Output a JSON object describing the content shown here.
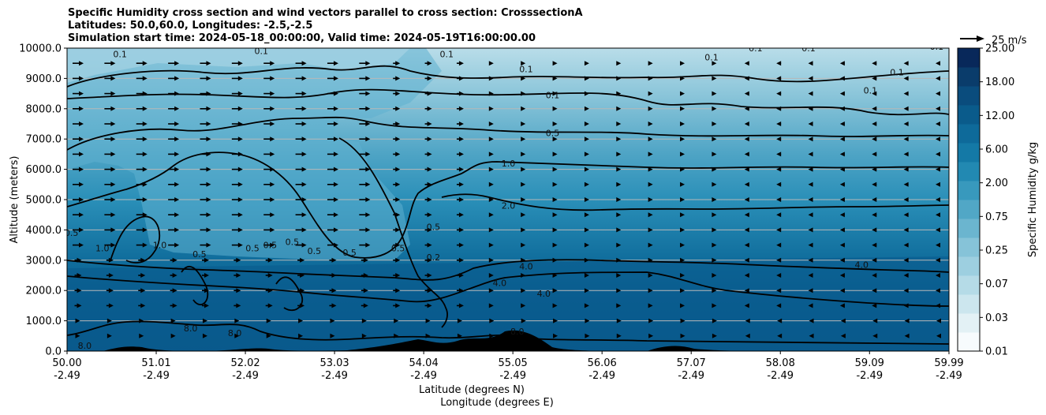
{
  "chart_data": {
    "type": "heatmap",
    "title_lines": [
      "Specific Humidity cross section and wind vectors parallel to cross section: CrosssectionA",
      "Latitudes: 50.0,60.0, Longitudes: -2.5,-2.5",
      "Simulation start time: 2024-05-18_00:00:00, Valid time: 2024-05-19T16:00:00.00"
    ],
    "ylabel": "Altitude (meters)",
    "xlabel_lines": [
      "Latitude (degrees N)",
      "Longitude (degrees E)"
    ],
    "ylim": [
      0,
      10000
    ],
    "xlim": [
      50.0,
      59.99
    ],
    "y_ticks": [
      "0.0",
      "1000.0",
      "2000.0",
      "3000.0",
      "4000.0",
      "5000.0",
      "6000.0",
      "7000.0",
      "8000.0",
      "9000.0",
      "10000.0"
    ],
    "x_ticks": [
      {
        "lat": "50.00",
        "lon": "-2.49"
      },
      {
        "lat": "51.01",
        "lon": "-2.49"
      },
      {
        "lat": "52.02",
        "lon": "-2.49"
      },
      {
        "lat": "53.03",
        "lon": "-2.49"
      },
      {
        "lat": "54.04",
        "lon": "-2.49"
      },
      {
        "lat": "55.05",
        "lon": "-2.49"
      },
      {
        "lat": "56.06",
        "lon": "-2.49"
      },
      {
        "lat": "57.07",
        "lon": "-2.49"
      },
      {
        "lat": "58.08",
        "lon": "-2.49"
      },
      {
        "lat": "59.09",
        "lon": "-2.49"
      },
      {
        "lat": "59.99",
        "lon": "-2.49"
      }
    ],
    "grid": "horizontal",
    "colorbar": {
      "label": "Specific Humidity g/kg",
      "levels": [
        "0.01",
        "0.03",
        "0.07",
        "0.25",
        "0.75",
        "2.00",
        "6.00",
        "12.00",
        "18.00",
        "25.00"
      ],
      "label_levels": [
        "0.01",
        "0.03",
        "0.07",
        "0.25",
        "0.75",
        "2.00",
        "6.00",
        "12.00",
        "18.00",
        "25.00"
      ],
      "colors": [
        "#f7fbfd",
        "#e3f1f5",
        "#cce6ee",
        "#b5dbe7",
        "#9dcfe0",
        "#86c3d8",
        "#6bb5cf",
        "#51a7c6",
        "#3899bd",
        "#2289b2",
        "#1479a6",
        "#0e6a9a",
        "#0a5b8b",
        "#0a4c7d",
        "#0a3c6b",
        "#08285a"
      ]
    },
    "quiver_key": "25 m/s",
    "contour_labels": [
      {
        "text": "0.1",
        "lat": 50.6,
        "alt": 9700
      },
      {
        "text": "0.1",
        "lat": 52.2,
        "alt": 9800
      },
      {
        "text": "0.1",
        "lat": 54.3,
        "alt": 9700
      },
      {
        "text": "0.1",
        "lat": 55.2,
        "alt": 9200
      },
      {
        "text": "0.1",
        "lat": 55.5,
        "alt": 8350
      },
      {
        "text": "0.1",
        "lat": 57.3,
        "alt": 9600
      },
      {
        "text": "0.1",
        "lat": 57.8,
        "alt": 9900
      },
      {
        "text": "0.1",
        "lat": 58.4,
        "alt": 9900
      },
      {
        "text": "0.1",
        "lat": 59.4,
        "alt": 9100
      },
      {
        "text": "0.1",
        "lat": 59.1,
        "alt": 8500
      },
      {
        "text": "0.1",
        "lat": 59.85,
        "alt": 9950
      },
      {
        "text": "0.5",
        "lat": 55.5,
        "alt": 7100
      },
      {
        "text": "1.0",
        "lat": 55.0,
        "alt": 6100
      },
      {
        "text": "2.0",
        "lat": 55.0,
        "alt": 4700
      },
      {
        "text": "4.0",
        "lat": 54.9,
        "alt": 2150
      },
      {
        "text": "4.0",
        "lat": 55.2,
        "alt": 2700
      },
      {
        "text": "4.0",
        "lat": 55.4,
        "alt": 1800
      },
      {
        "text": "4.0",
        "lat": 59.0,
        "alt": 2750
      },
      {
        "text": "0.5",
        "lat": 50.05,
        "alt": 3800
      },
      {
        "text": "1.0",
        "lat": 50.4,
        "alt": 3300
      },
      {
        "text": "1.0",
        "lat": 51.05,
        "alt": 3400
      },
      {
        "text": "0.5",
        "lat": 51.5,
        "alt": 3100
      },
      {
        "text": "0.5",
        "lat": 52.1,
        "alt": 3300
      },
      {
        "text": "0.5",
        "lat": 52.3,
        "alt": 3400
      },
      {
        "text": "0.5",
        "lat": 52.55,
        "alt": 3500
      },
      {
        "text": "0.5",
        "lat": 52.8,
        "alt": 3200
      },
      {
        "text": "0.5",
        "lat": 53.2,
        "alt": 3150
      },
      {
        "text": "0.5",
        "lat": 53.75,
        "alt": 3300
      },
      {
        "text": "0.2",
        "lat": 54.15,
        "alt": 3000
      },
      {
        "text": "0.5",
        "lat": 54.15,
        "alt": 4000
      },
      {
        "text": "8.0",
        "lat": 50.2,
        "alt": 80
      },
      {
        "text": "8.0",
        "lat": 51.4,
        "alt": 650
      },
      {
        "text": "8.0",
        "lat": 51.9,
        "alt": 500
      },
      {
        "text": "8.0",
        "lat": 55.1,
        "alt": 550
      }
    ]
  }
}
